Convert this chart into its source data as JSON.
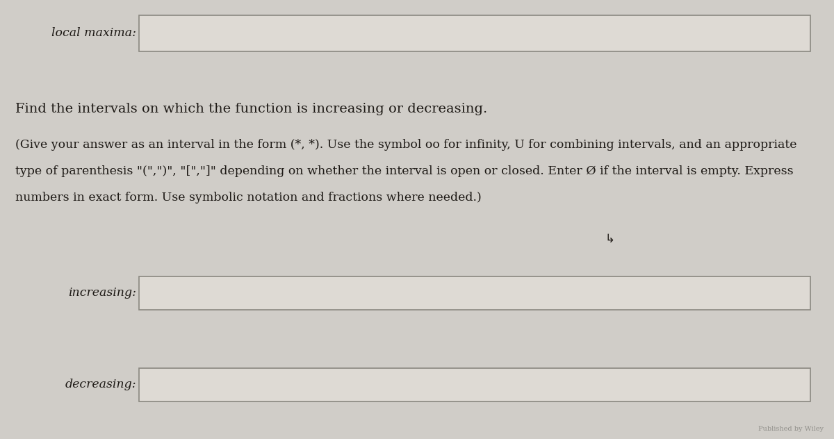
{
  "bg_color": "#d0cdc8",
  "text_color": "#1e1a16",
  "box_fill": "#dedad4",
  "box_edge": "#8a8880",
  "label1": "local maxima:",
  "label2": "increasing:",
  "label3": "decreasing:",
  "heading": "Find the intervals on which the function is increasing or decreasing.",
  "instruction_line1": "(Give your answer as an interval in the form (*, *). Use the symbol oo for infinity, U for combining intervals, and an appropriate",
  "instruction_line2": "type of parenthesis \"(\",\")\", \"[\",\"]\" depending on whether the interval is open or closed. Enter Ø if the interval is empty. Express",
  "instruction_line3": "numbers in exact form. Use symbolic notation and fractions where needed.)",
  "font_size_heading": 14,
  "font_size_instruction": 12.5,
  "font_size_label": 12.5,
  "cursor_char": "↲"
}
